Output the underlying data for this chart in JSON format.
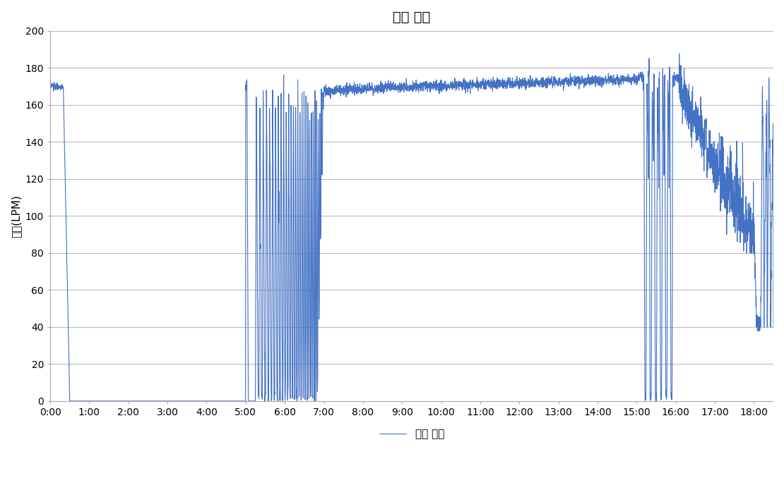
{
  "title": "칠러 유량",
  "xlabel_legend": "칠러 유량",
  "ylabel": "유량(LPM)",
  "line_color": "#4472C4",
  "line_width": 0.8,
  "ylim": [
    0,
    200
  ],
  "yticks": [
    0,
    20,
    40,
    60,
    80,
    100,
    120,
    140,
    160,
    180,
    200
  ],
  "xtick_labels": [
    "0:00",
    "1:00",
    "2:00",
    "3:00",
    "4:00",
    "5:00",
    "6:00",
    "7:00",
    "8:00",
    "9:00",
    "10:00",
    "11:00",
    "12:00",
    "13:00",
    "14:00",
    "15:00",
    "16:00",
    "17:00",
    "18:00"
  ],
  "background_color": "#ffffff",
  "grid_color": "#bbbbbb",
  "title_fontsize": 14,
  "axis_fontsize": 11,
  "tick_fontsize": 10,
  "legend_fontsize": 11
}
